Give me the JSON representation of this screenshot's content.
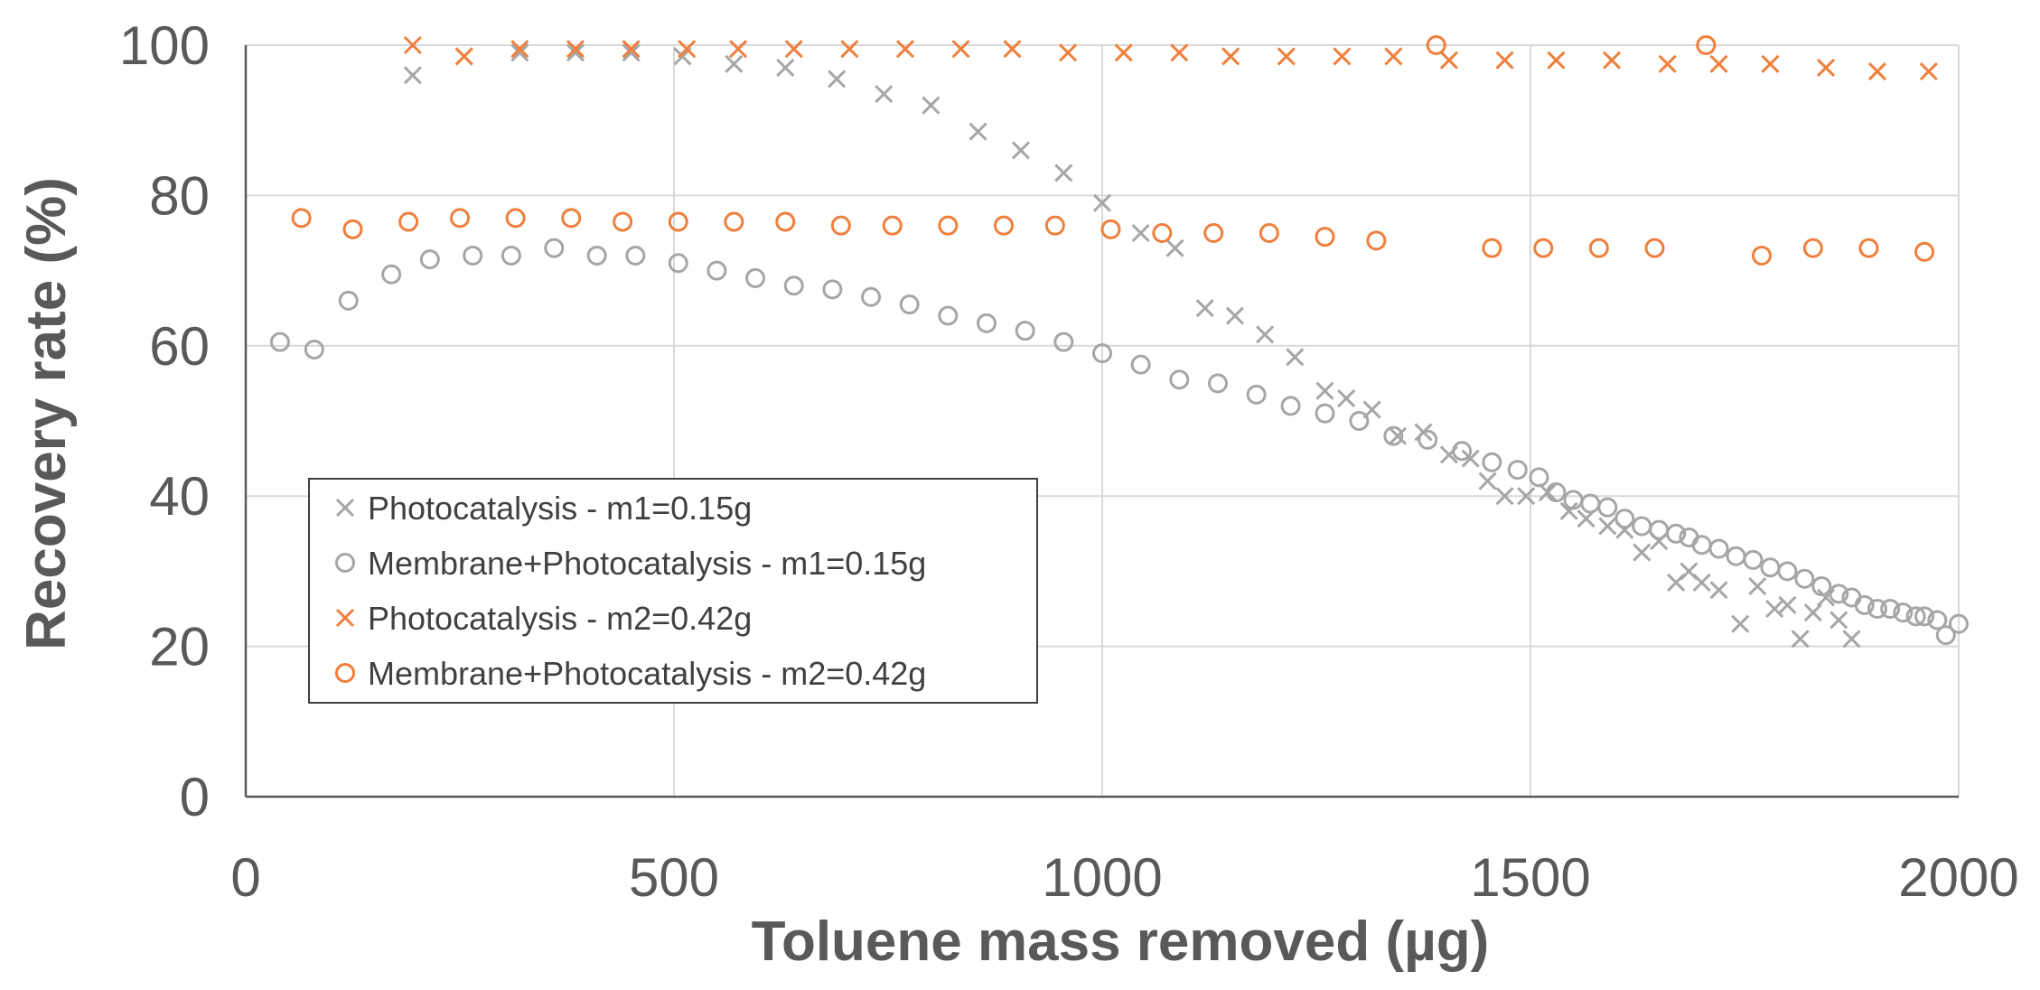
{
  "chart_data": {
    "type": "scatter",
    "title": "",
    "xlabel": "Toluene mass removed (µg)",
    "ylabel": "Recovery rate (%)",
    "xlim": [
      0,
      2000
    ],
    "ylim": [
      0,
      100
    ],
    "x_ticks": [
      "0",
      "500",
      "1000",
      "1500",
      "2000"
    ],
    "y_ticks": [
      "0",
      "20",
      "40",
      "60",
      "80",
      "100"
    ],
    "grid": true,
    "legend_position": "left-lower",
    "colors": {
      "gray": "#a6a6a6",
      "orange": "#f07f3c",
      "grid": "#d9d9d9",
      "axis": "#595959"
    },
    "series": [
      {
        "name": "Photocatalysis - m1=0.15g",
        "marker": "x",
        "color": "#a6a6a6",
        "x": [
          195,
          255,
          320,
          385,
          450,
          510,
          570,
          630,
          690,
          745,
          800,
          855,
          905,
          955,
          1000,
          1045,
          1085,
          1120,
          1155,
          1190,
          1225,
          1260,
          1285,
          1315,
          1345,
          1375,
          1405,
          1430,
          1450,
          1470,
          1495,
          1520,
          1545,
          1565,
          1590,
          1610,
          1630,
          1650,
          1670,
          1685,
          1700,
          1720,
          1745,
          1765,
          1785,
          1800,
          1815,
          1830,
          1845,
          1860,
          1875
        ],
        "y": [
          96,
          98.5,
          99,
          99,
          99,
          98.5,
          97.5,
          97,
          95.5,
          93.5,
          92,
          88.5,
          86,
          83,
          79,
          75,
          73,
          65,
          64,
          61.5,
          58.5,
          54,
          53,
          51.5,
          48,
          48.5,
          45.5,
          45,
          42,
          40,
          40,
          40.5,
          38,
          37,
          36,
          35.5,
          32.5,
          34,
          28.5,
          30,
          28.5,
          27.5,
          23,
          28,
          25,
          25.5,
          21,
          24.5,
          26.5,
          23.5,
          21
        ]
      },
      {
        "name": "Membrane+Photocatalysis - m1=0.15g",
        "marker": "o",
        "color": "#a6a6a6",
        "x": [
          40,
          80,
          120,
          170,
          215,
          265,
          310,
          360,
          410,
          455,
          505,
          550,
          595,
          640,
          685,
          730,
          775,
          820,
          865,
          910,
          955,
          1000,
          1045,
          1090,
          1135,
          1180,
          1220,
          1260,
          1300,
          1340,
          1380,
          1420,
          1455,
          1485,
          1510,
          1530,
          1550,
          1570,
          1590,
          1610,
          1630,
          1650,
          1670,
          1685,
          1700,
          1720,
          1740,
          1760,
          1780,
          1800,
          1820,
          1840,
          1860,
          1875,
          1890,
          1905,
          1920,
          1935,
          1950,
          1960,
          1975,
          1985,
          2000
        ],
        "y": [
          60.5,
          59.5,
          66,
          69.5,
          71.5,
          72,
          72,
          73,
          72,
          72,
          71,
          70,
          69,
          68,
          67.5,
          66.5,
          65.5,
          64,
          63,
          62,
          60.5,
          59,
          57.5,
          55.5,
          55,
          53.5,
          52,
          51,
          50,
          48,
          47.5,
          46,
          44.5,
          43.5,
          42.5,
          40.5,
          39.5,
          39,
          38.5,
          37,
          36,
          35.5,
          35,
          34.5,
          33.5,
          33,
          32,
          31.5,
          30.5,
          30,
          29,
          28,
          27,
          26.5,
          25.5,
          25,
          25,
          24.5,
          24,
          24,
          23.5,
          21.5,
          23
        ]
      },
      {
        "name": "Photocatalysis - m2=0.42g",
        "marker": "x",
        "color": "#f07f3c",
        "x": [
          195,
          255,
          320,
          385,
          450,
          515,
          575,
          640,
          705,
          770,
          835,
          895,
          960,
          1025,
          1090,
          1150,
          1215,
          1280,
          1340,
          1405,
          1470,
          1530,
          1595,
          1660,
          1720,
          1780,
          1845,
          1905,
          1965
        ],
        "y": [
          100,
          98.5,
          99.5,
          99.5,
          99.5,
          99.5,
          99.5,
          99.5,
          99.5,
          99.5,
          99.5,
          99.5,
          99,
          99,
          99,
          98.5,
          98.5,
          98.5,
          98.5,
          98,
          98,
          98,
          98,
          97.5,
          97.5,
          97.5,
          97,
          96.5,
          96.5
        ]
      },
      {
        "name": "Membrane+Photocatalysis - m2=0.42g",
        "marker": "o",
        "color": "#f07f3c",
        "x": [
          65,
          125,
          190,
          250,
          315,
          380,
          440,
          505,
          570,
          630,
          695,
          755,
          820,
          885,
          945,
          1010,
          1070,
          1130,
          1195,
          1260,
          1320,
          1390,
          1455,
          1515,
          1580,
          1645,
          1705,
          1770,
          1830,
          1895,
          1960
        ],
        "y": [
          77,
          75.5,
          76.5,
          77,
          77,
          77,
          76.5,
          76.5,
          76.5,
          76.5,
          76,
          76,
          76,
          76,
          76,
          75.5,
          75,
          75,
          75,
          74.5,
          74,
          100,
          73,
          73,
          73,
          73,
          100,
          72,
          73,
          73,
          72.5
        ]
      }
    ]
  }
}
